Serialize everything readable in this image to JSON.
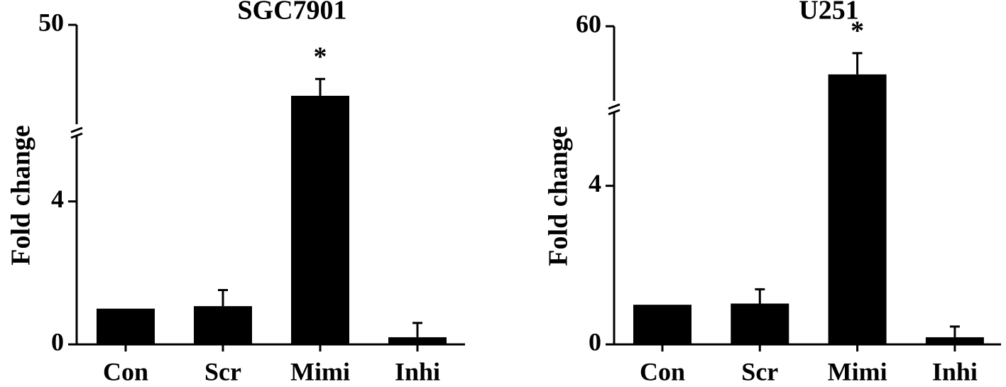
{
  "chart_data": [
    {
      "type": "bar",
      "title": "SGC7901",
      "y_label": "Fold change",
      "categories": [
        "Con",
        "Scr",
        "Mimi",
        "Inhi"
      ],
      "values": [
        1,
        1.07,
        36.5,
        0.2
      ],
      "errors": [
        0,
        0.45,
        3.2,
        0.4
      ],
      "color": "#000000",
      "axis_segments": [
        {
          "ylim": [
            0,
            6
          ],
          "yticks": [
            0,
            4
          ]
        },
        {
          "ylim": [
            30,
            50
          ],
          "yticks": [
            50
          ]
        }
      ],
      "annotations": [
        {
          "text": "*",
          "x": "Mimi"
        }
      ]
    },
    {
      "type": "bar",
      "title": "U251",
      "y_label": "Fold change",
      "categories": [
        "Con",
        "Scr",
        "Mimi",
        "Inhi"
      ],
      "values": [
        1,
        1.03,
        48,
        0.18
      ],
      "errors": [
        0,
        0.36,
        5.3,
        0.27
      ],
      "color": "#000000",
      "axis_segments": [
        {
          "ylim": [
            0,
            6
          ],
          "yticks": [
            0,
            4
          ]
        },
        {
          "ylim": [
            40,
            60
          ],
          "yticks": [
            60
          ]
        }
      ],
      "annotations": [
        {
          "text": "*",
          "x": "Mimi"
        }
      ]
    }
  ]
}
